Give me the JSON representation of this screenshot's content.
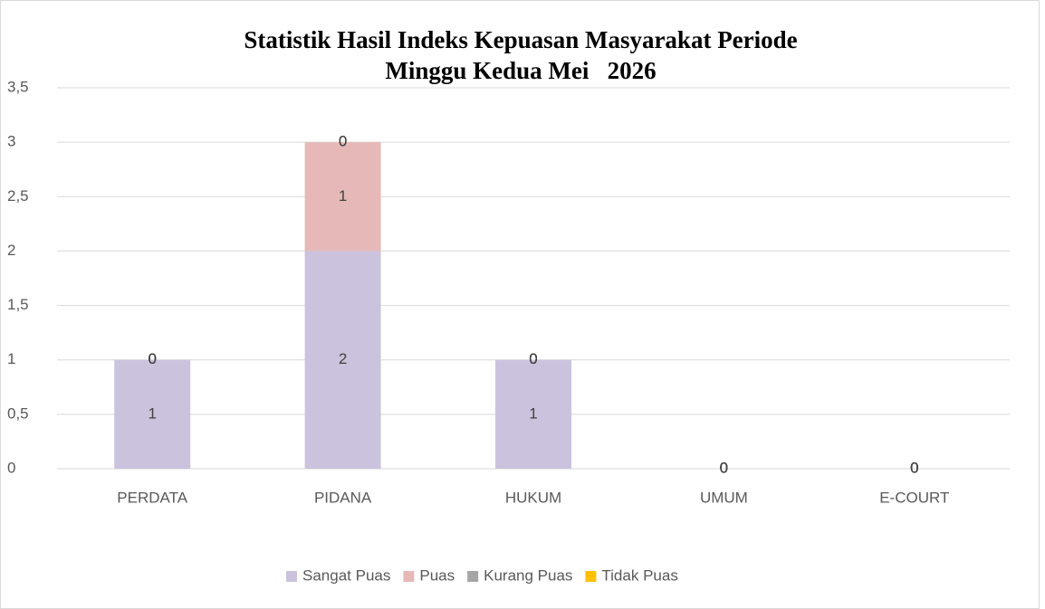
{
  "chart_data": {
    "type": "stacked_bar",
    "title": [
      "Statistik Hasil Indeks Kepuasan Masyarakat Periode",
      "Minggu Kedua Mei   2026"
    ],
    "categories": [
      "PERDATA",
      "PIDANA",
      "HUKUM",
      "UMUM",
      "E-COURT"
    ],
    "series": [
      {
        "name": "Sangat Puas",
        "color": "#cbc3dd",
        "values": [
          1,
          2,
          1,
          0,
          0
        ]
      },
      {
        "name": "Puas",
        "color": "#e6b9b8",
        "values": [
          0,
          1,
          0,
          0,
          0
        ]
      },
      {
        "name": "Kurang Puas",
        "color": "#a5a5a5",
        "values": [
          0,
          0,
          0,
          0,
          0
        ]
      },
      {
        "name": "Tidak Puas",
        "color": "#ffc000",
        "values": [
          0,
          0,
          0,
          0,
          0
        ]
      }
    ],
    "ylim": [
      0,
      3.5
    ],
    "yticks": [
      0,
      {
        "value": 0.5,
        "label": "0,5"
      },
      1,
      {
        "value": 1.5,
        "label": "1,5"
      },
      2,
      {
        "value": 2.5,
        "label": "2,5"
      },
      3,
      {
        "value": 3.5,
        "label": "3,5"
      }
    ],
    "grid": true,
    "legend": "bottom"
  }
}
